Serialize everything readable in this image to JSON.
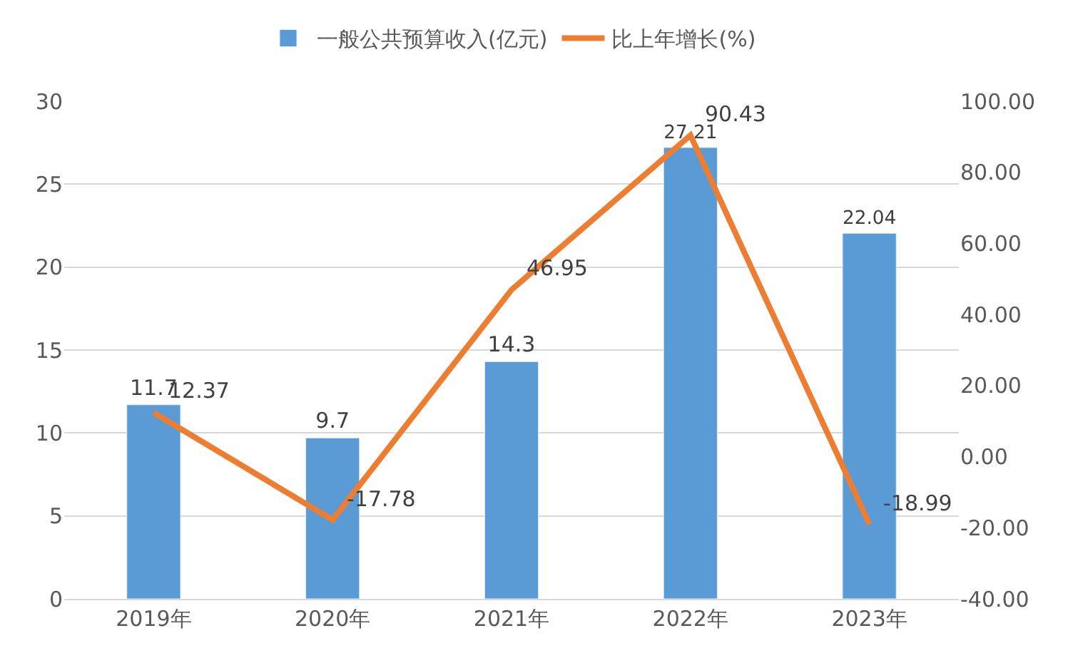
{
  "chart_data": {
    "type": "bar",
    "categories": [
      "2019年",
      "2020年",
      "2021年",
      "2022年",
      "2023年"
    ],
    "series": [
      {
        "name": "一般公共预算收入(亿元)",
        "color": "#5b9bd5",
        "values": [
          11.7,
          9.7,
          14.3,
          27.21,
          22.04
        ]
      },
      {
        "name": "比上年增长(%)",
        "type": "line",
        "axis": "y2",
        "color": "#ed7d31",
        "values": [
          12.37,
          -17.78,
          46.95,
          90.43,
          -18.99
        ]
      }
    ],
    "ylim": [
      0,
      30
    ],
    "yticks": [
      0,
      5,
      10,
      15,
      20,
      25,
      30
    ],
    "y2lim": [
      -40,
      100
    ],
    "y2ticks": [
      {
        "value": -40,
        "label": "-40.00"
      },
      {
        "value": -20,
        "label": "-20.00"
      },
      {
        "value": 0,
        "label": "0.00"
      },
      {
        "value": 20,
        "label": "20.00"
      },
      {
        "value": 40,
        "label": "40.00"
      },
      {
        "value": 60,
        "label": "60.00"
      },
      {
        "value": 80,
        "label": "80.00"
      },
      {
        "value": 100,
        "label": "100.00"
      }
    ],
    "data_labels": true,
    "grid": "y",
    "legend": "top",
    "marker": "none",
    "line_style": "solid"
  }
}
